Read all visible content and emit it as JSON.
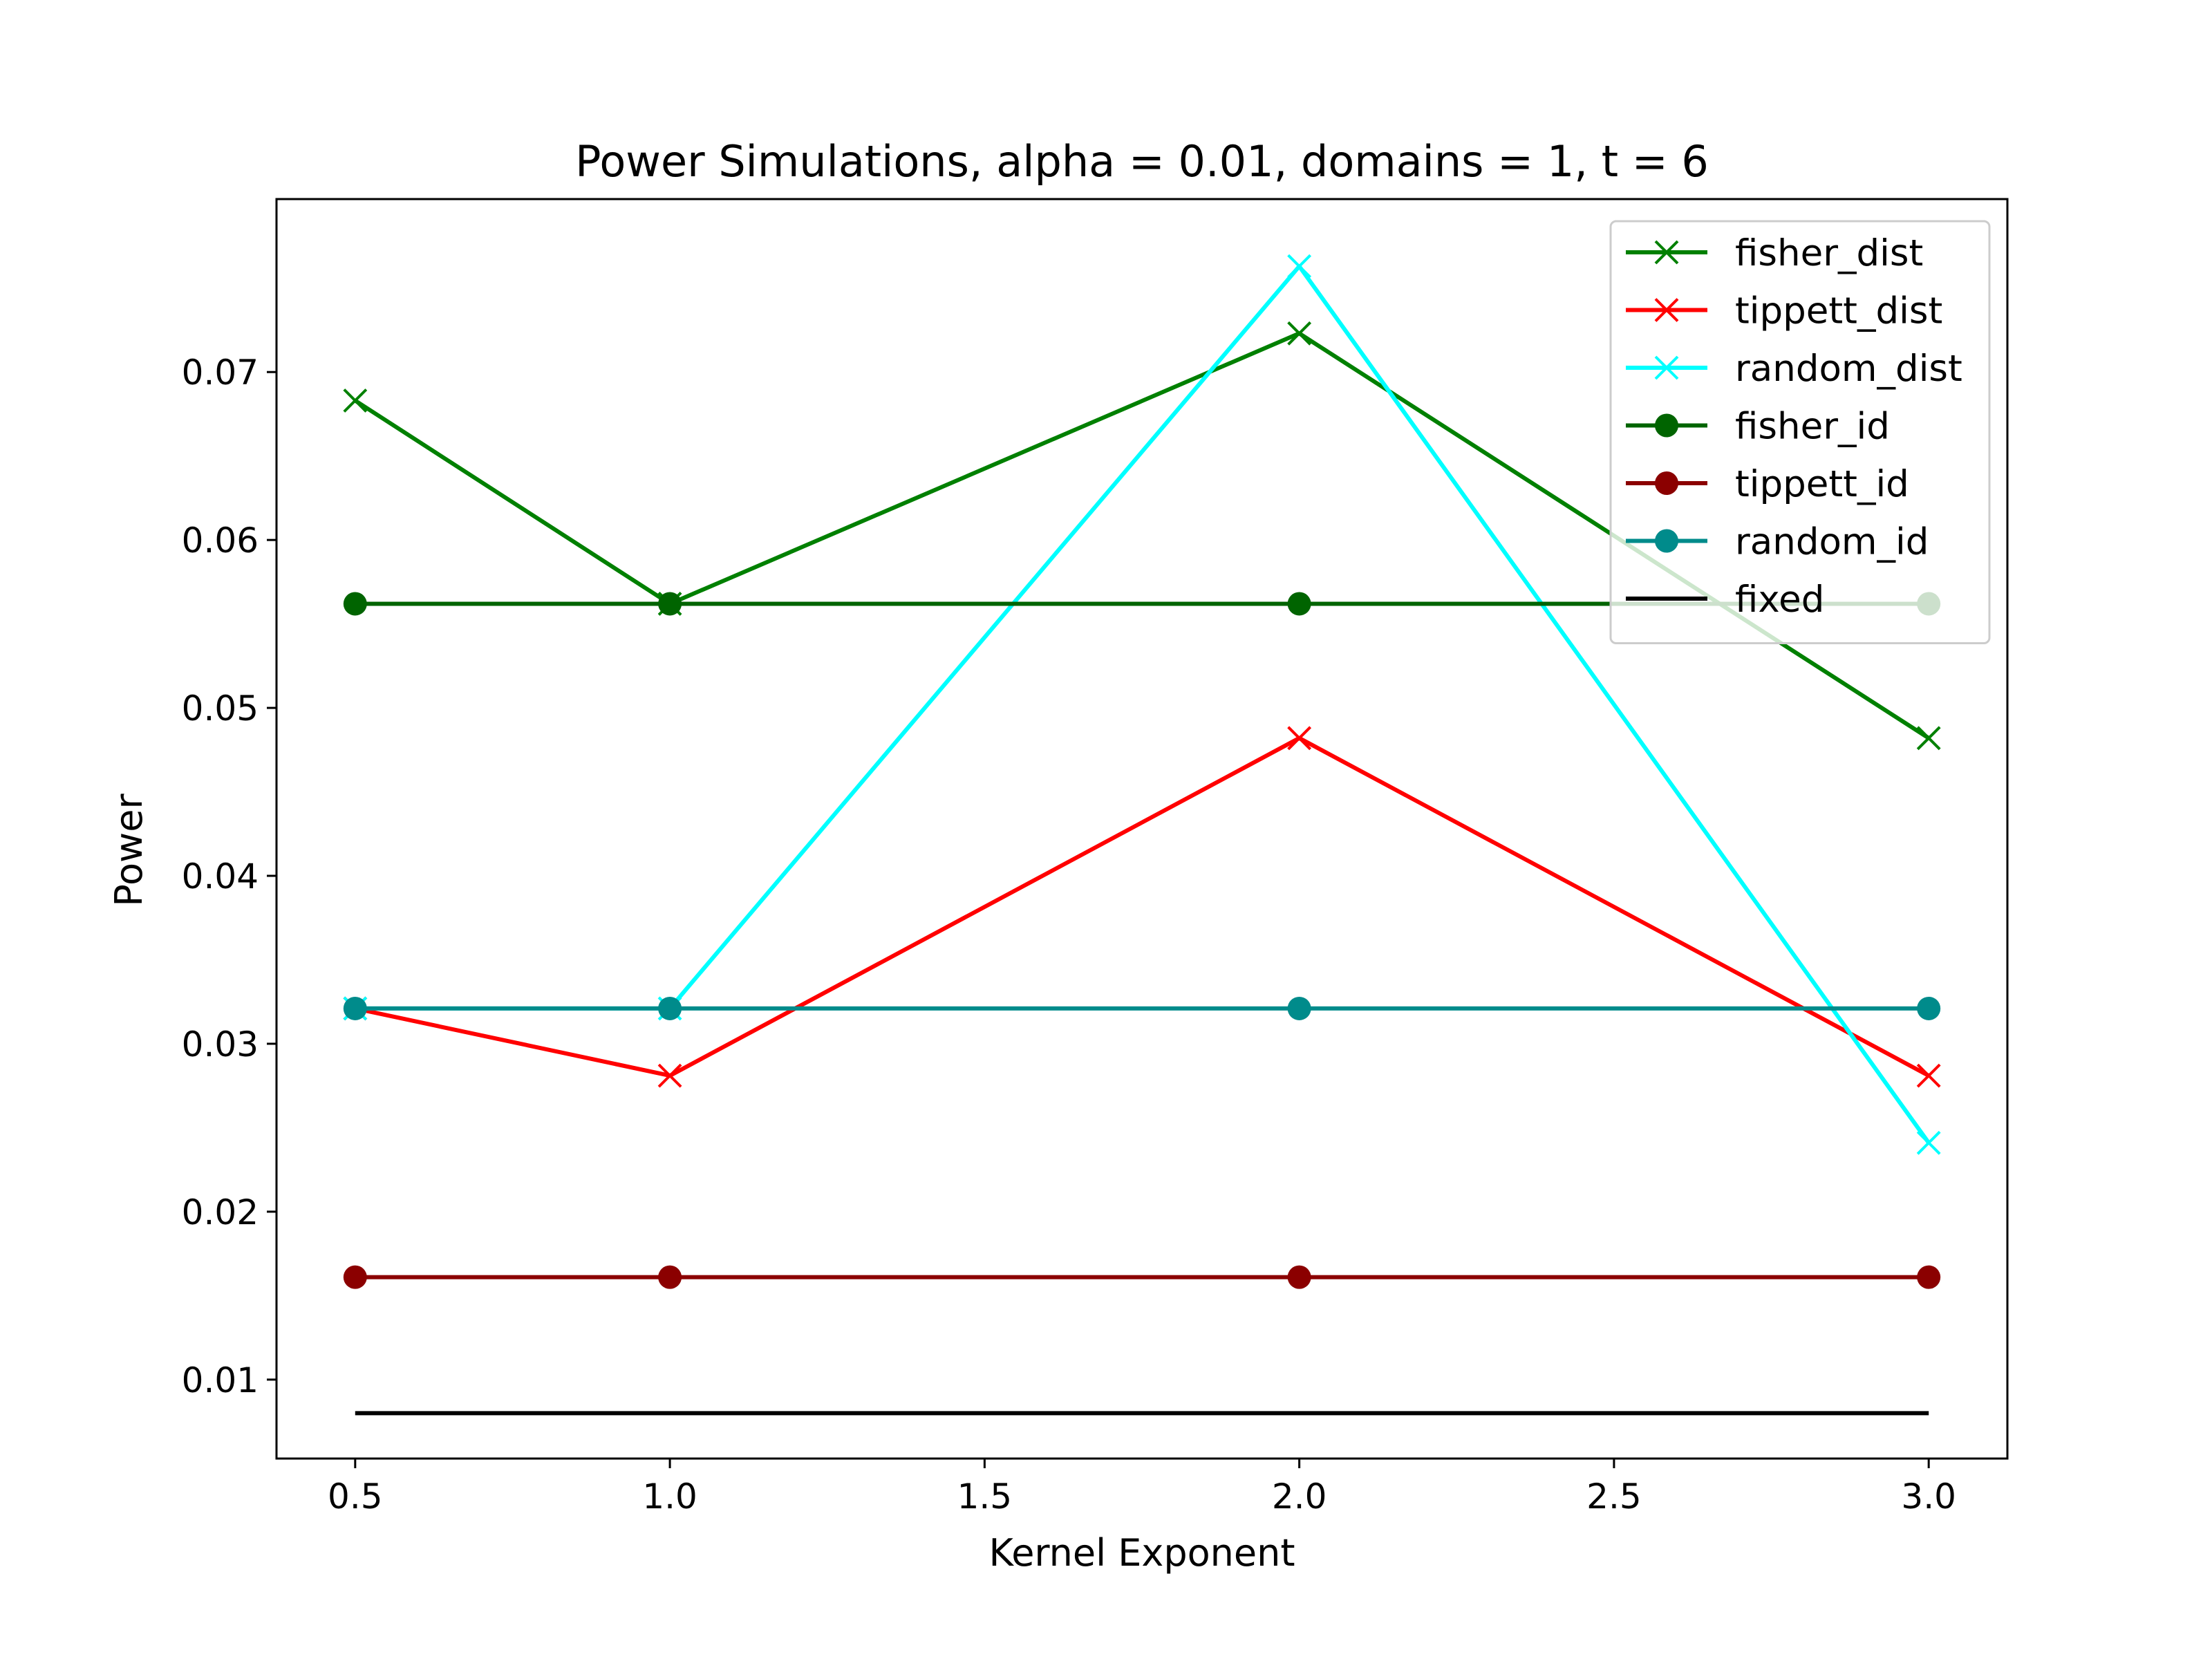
{
  "chart_data": {
    "type": "line",
    "title": "Power Simulations, alpha = 0.01, domains = 1, t = 6",
    "xlabel": "Kernel Exponent",
    "ylabel": "Power",
    "x": [
      0.5,
      1.0,
      2.0,
      3.0
    ],
    "xlim": [
      0.375,
      3.125
    ],
    "ylim": [
      0.0053,
      0.0803
    ],
    "xticks": [
      0.5,
      1.0,
      1.5,
      2.0,
      2.5,
      3.0
    ],
    "xtick_labels": [
      "0.5",
      "1.0",
      "1.5",
      "2.0",
      "2.5",
      "3.0"
    ],
    "yticks": [
      0.01,
      0.02,
      0.03,
      0.04,
      0.05,
      0.06,
      0.07
    ],
    "ytick_labels": [
      "0.01",
      "0.02",
      "0.03",
      "0.04",
      "0.05",
      "0.06",
      "0.07"
    ],
    "grid": false,
    "legend_position": "top-right",
    "series": [
      {
        "name": "fisher_dist",
        "values": [
          0.0683,
          0.0562,
          0.0723,
          0.0482
        ],
        "color": "#008000",
        "marker": "x"
      },
      {
        "name": "tippett_dist",
        "values": [
          0.0321,
          0.0281,
          0.0482,
          0.0281
        ],
        "color": "#ff0000",
        "marker": "x"
      },
      {
        "name": "random_dist",
        "values": [
          0.0321,
          0.0321,
          0.0763,
          0.0241
        ],
        "color": "#00ffff",
        "marker": "x"
      },
      {
        "name": "fisher_id",
        "values": [
          0.0562,
          0.0562,
          0.0562,
          0.0562
        ],
        "color": "#006400",
        "marker": "o"
      },
      {
        "name": "tippett_id",
        "values": [
          0.0161,
          0.0161,
          0.0161,
          0.0161
        ],
        "color": "#8b0000",
        "marker": "o"
      },
      {
        "name": "random_id",
        "values": [
          0.0321,
          0.0321,
          0.0321,
          0.0321
        ],
        "color": "#008b8b",
        "marker": "o"
      },
      {
        "name": "fixed",
        "values": [
          0.008,
          0.008,
          0.008,
          0.008
        ],
        "color": "#000000",
        "marker": "none"
      }
    ]
  }
}
